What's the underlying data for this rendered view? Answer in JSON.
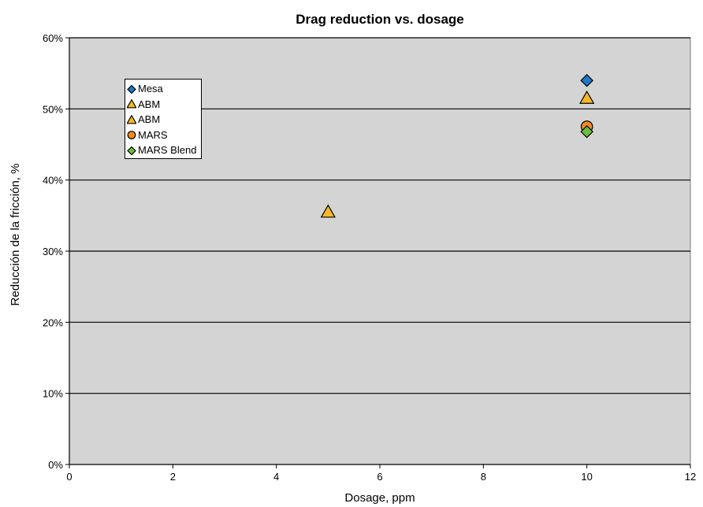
{
  "chart_data": {
    "type": "scatter",
    "title": "Drag reduction vs. dosage",
    "xlabel": "Dosage, ppm",
    "ylabel": "Reducción de la fricción, %",
    "xlim": [
      0,
      12
    ],
    "ylim": [
      0,
      60
    ],
    "x_ticks": [
      0,
      2,
      4,
      6,
      8,
      10,
      12
    ],
    "y_ticks": [
      0,
      10,
      20,
      30,
      40,
      50,
      60
    ],
    "x_tick_labels": [
      "0",
      "2",
      "4",
      "6",
      "8",
      "10",
      "12"
    ],
    "y_tick_labels": [
      "0%",
      "10%",
      "20%",
      "30%",
      "40%",
      "50%",
      "60%"
    ],
    "grid": "horizontal",
    "legend_position": "top-left",
    "plot_background": "#d4d4d4",
    "series": [
      {
        "name": "Mesa",
        "marker": "diamond",
        "color": "#1f78c8",
        "points": [
          {
            "x": 10,
            "y": 54
          }
        ]
      },
      {
        "name": "ABM",
        "marker": "triangle",
        "color": "#f7b825",
        "points": [
          {
            "x": 5,
            "y": 35.5
          }
        ]
      },
      {
        "name": "ABM",
        "marker": "triangle",
        "color": "#f7b825",
        "points": [
          {
            "x": 10,
            "y": 51.5
          }
        ]
      },
      {
        "name": "MARS",
        "marker": "circle",
        "color": "#f08a24",
        "points": [
          {
            "x": 10,
            "y": 47.5
          }
        ]
      },
      {
        "name": "MARS Blend",
        "marker": "diamond",
        "color": "#6cbf3c",
        "points": [
          {
            "x": 10,
            "y": 46.8
          }
        ]
      }
    ]
  }
}
